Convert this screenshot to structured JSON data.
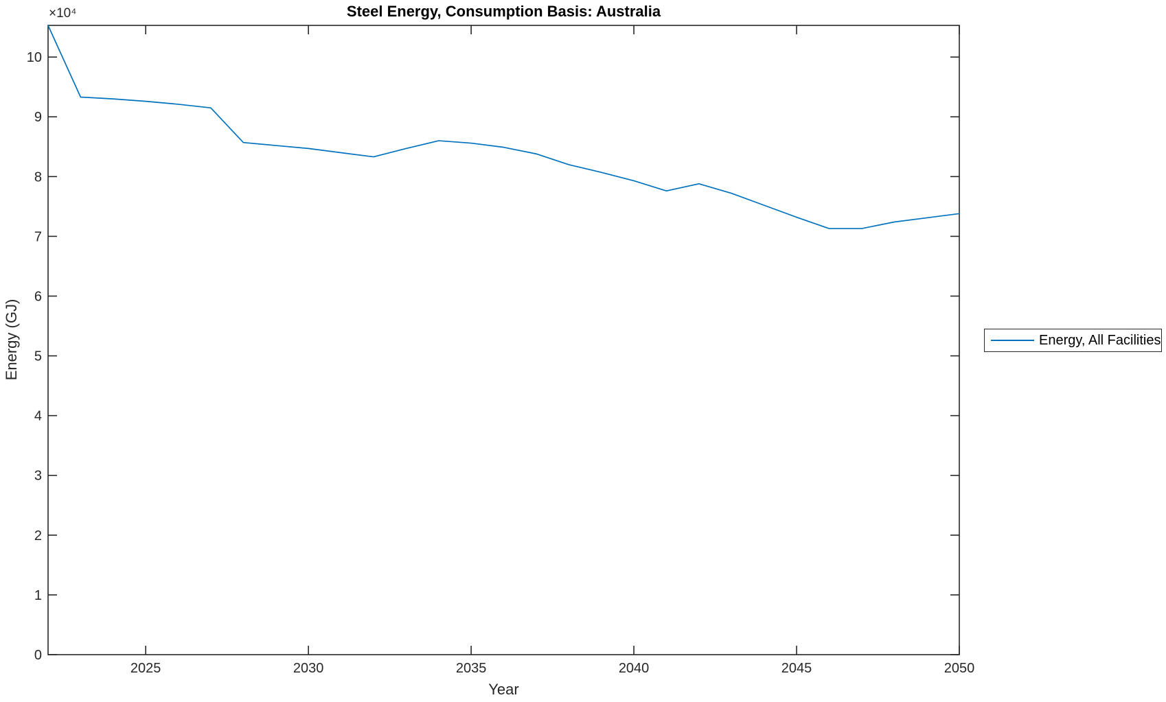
{
  "title": "Steel Energy, Consumption Basis: Australia",
  "colors": {
    "line": "#0072BD",
    "axis": "#262626"
  },
  "chart_data": {
    "type": "line",
    "title": "Steel Energy, Consumption Basis: Australia",
    "xlabel": "Year",
    "ylabel": "Energy (GJ)",
    "y_axis_multiplier": "×10⁴",
    "xlim": [
      2022,
      2050
    ],
    "ylim": [
      0,
      105300
    ],
    "grid": false,
    "x_ticks": [
      {
        "v": 2025,
        "label": "2025"
      },
      {
        "v": 2030,
        "label": "2030"
      },
      {
        "v": 2035,
        "label": "2035"
      },
      {
        "v": 2040,
        "label": "2040"
      },
      {
        "v": 2045,
        "label": "2045"
      },
      {
        "v": 2050,
        "label": "2050"
      }
    ],
    "y_ticks": [
      {
        "v": 0,
        "label": "0"
      },
      {
        "v": 10000,
        "label": "1"
      },
      {
        "v": 20000,
        "label": "2"
      },
      {
        "v": 30000,
        "label": "3"
      },
      {
        "v": 40000,
        "label": "4"
      },
      {
        "v": 50000,
        "label": "5"
      },
      {
        "v": 60000,
        "label": "6"
      },
      {
        "v": 70000,
        "label": "7"
      },
      {
        "v": 80000,
        "label": "8"
      },
      {
        "v": 90000,
        "label": "9"
      },
      {
        "v": 100000,
        "label": "10"
      }
    ],
    "legend": {
      "position": "right-outside",
      "entries": [
        {
          "label": "Energy, All Facilities",
          "color": "#0072BD"
        }
      ]
    },
    "series": [
      {
        "name": "Energy, All Facilities",
        "color": "#0072BD",
        "x": [
          2022,
          2023,
          2024,
          2025,
          2026,
          2027,
          2028,
          2029,
          2030,
          2031,
          2032,
          2033,
          2034,
          2035,
          2036,
          2037,
          2038,
          2039,
          2040,
          2041,
          2042,
          2043,
          2044,
          2045,
          2046,
          2047,
          2048,
          2049,
          2050
        ],
        "values": [
          105300,
          93300,
          93000,
          92600,
          92100,
          91500,
          85700,
          85200,
          84700,
          84000,
          83300,
          84700,
          86000,
          85600,
          84900,
          83800,
          82000,
          80700,
          79300,
          77600,
          78800,
          77200,
          75200,
          73200,
          71300,
          71300,
          72400,
          73100,
          73800
        ]
      }
    ]
  }
}
